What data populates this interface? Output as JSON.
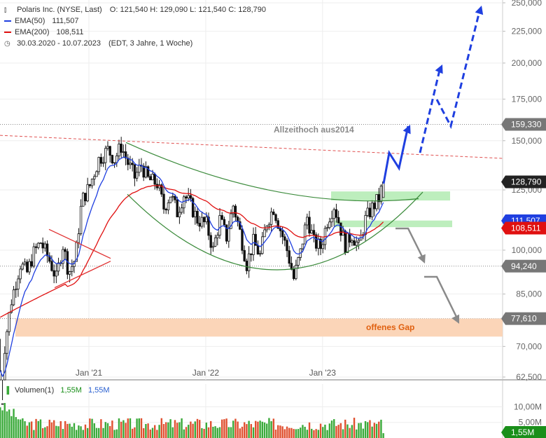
{
  "header": {
    "title": "Polaris Inc. (NYSE, Last)",
    "ohlc": "O: 121,540   H: 129,090   L: 121,540   C: 128,790",
    "ema50_label": "EMA(50)",
    "ema50_value": "111,507",
    "ema200_label": "EMA(200)",
    "ema200_value": "108,511",
    "range": "30.03.2020 - 10.07.2023",
    "range_note": "(EDT, 3 Jahre, 1 Woche)"
  },
  "volume_header": {
    "label": "Volumen(1)",
    "value1": "1,55M",
    "value2": "1,55M"
  },
  "colors": {
    "ema50": "#1f3fe0",
    "ema200": "#e01010",
    "candle": "#111111",
    "channel": "#3a8a3a",
    "forecast_up": "#1f3fe0",
    "forecast_down": "#8a8a8a",
    "resistance": "#e05050",
    "gap_zone": "#fbd5b8",
    "support_zone": "#bdeebd",
    "vol_up": "#3aaa3a",
    "vol_down": "#e05030"
  },
  "chart_data": {
    "type": "candlestick",
    "y_axis_ticks": [
      "250,000",
      "225,000",
      "200,000",
      "175,000",
      "150,000",
      "125,000",
      "100,000",
      "85,000",
      "70,000",
      "62,500"
    ],
    "x_axis_ticks": [
      "Jan '21",
      "Jan '22",
      "Jan '23"
    ],
    "volume_axis_ticks": [
      "10,00M",
      "5,00M"
    ],
    "price_tags": [
      {
        "label": "159,330",
        "value": 159.33,
        "color": "#777777"
      },
      {
        "label": "128,790",
        "value": 128.79,
        "color": "#222222"
      },
      {
        "label": "111,507",
        "value": 111.507,
        "color": "#1f3fe0"
      },
      {
        "label": "108,511",
        "value": 108.511,
        "color": "#e01010"
      },
      {
        "label": "94,240",
        "value": 94.24,
        "color": "#777777"
      },
      {
        "label": "77,610",
        "value": 77.61,
        "color": "#777777"
      },
      {
        "label": "1,55M",
        "value": 1.55,
        "color": "#1a8f1a"
      }
    ],
    "annotations": [
      {
        "text": "Allzeithoch aus2014"
      },
      {
        "text": "offenes Gap"
      }
    ],
    "y_scale": "log",
    "ylim": [
      62.5,
      250
    ],
    "x_range": [
      "30.03.2020",
      "10.07.2023"
    ],
    "key_points": {
      "last_close": 128.79,
      "ema50": 111.507,
      "ema200": 108.511,
      "all_time_high_2014": 159.33,
      "support": 94.24,
      "gap": 77.61
    },
    "grid": true
  }
}
